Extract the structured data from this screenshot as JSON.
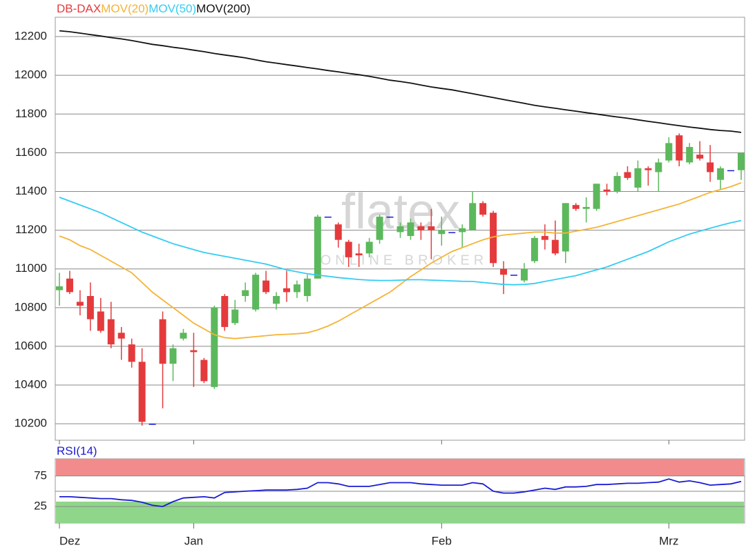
{
  "chart_data": [
    {
      "type": "candlestick",
      "watermark": "flatex",
      "watermark_sub": "ONLINE BROKER",
      "categories": [
        "Dez",
        null,
        null,
        null,
        null,
        null,
        null,
        null,
        null,
        null,
        null,
        null,
        null,
        "Jan",
        null,
        null,
        null,
        null,
        null,
        null,
        null,
        null,
        null,
        null,
        null,
        null,
        null,
        null,
        null,
        null,
        null,
        null,
        null,
        null,
        null,
        null,
        null,
        "Feb",
        null,
        null,
        null,
        null,
        null,
        null,
        null,
        null,
        null,
        null,
        null,
        null,
        null,
        null,
        null,
        null,
        null,
        null,
        null,
        null,
        null,
        "Mrz",
        null,
        null,
        null,
        null,
        null,
        null,
        null
      ],
      "ylim": [
        10115,
        12300
      ],
      "yticks": [
        10200,
        10400,
        10600,
        10800,
        11000,
        11200,
        11400,
        11600,
        11800,
        12000,
        12200
      ],
      "grid": true,
      "candles": {
        "name": "DB-DAX",
        "up_color": "#5cb85c",
        "down_color": "#e53a3c",
        "doji_color": "#1a1ad6",
        "open": [
          10890,
          10950,
          10830,
          10860,
          10780,
          10740,
          10670,
          10610,
          10520,
          10200,
          10740,
          10510,
          10640,
          10580,
          10530,
          10390,
          10860,
          10720,
          10860,
          10790,
          10940,
          10820,
          10900,
          10880,
          10860,
          10950,
          11270,
          11230,
          11140,
          11080,
          11080,
          11150,
          11270,
          11190,
          11170,
          11220,
          11220,
          11180,
          11190,
          11190,
          11200,
          11340,
          11290,
          11000,
          10970,
          10940,
          11040,
          11170,
          11150,
          11090,
          11330,
          11310,
          11310,
          11410,
          11400,
          11500,
          11420,
          11520,
          11500,
          11560,
          11690,
          11550,
          11590,
          11550,
          11460,
          11510,
          11510
        ],
        "high": [
          10980,
          10990,
          10890,
          10930,
          10850,
          10830,
          10700,
          10640,
          10590,
          10200,
          10780,
          10610,
          10690,
          10670,
          10540,
          10810,
          10870,
          10840,
          10930,
          10980,
          10990,
          10880,
          10990,
          10940,
          10970,
          11280,
          11270,
          11240,
          11150,
          11130,
          11160,
          11280,
          11270,
          11240,
          11260,
          11240,
          11310,
          11270,
          11190,
          11230,
          11400,
          11350,
          11300,
          11040,
          10970,
          11030,
          11170,
          11230,
          11250,
          11340,
          11340,
          11370,
          11440,
          11440,
          11500,
          11530,
          11560,
          11530,
          11570,
          11680,
          11700,
          11650,
          11660,
          11640,
          11530,
          11510,
          11600
        ],
        "low": [
          10810,
          10870,
          10760,
          10680,
          10670,
          10590,
          10530,
          10490,
          10190,
          10195,
          10280,
          10420,
          10630,
          10390,
          10410,
          10380,
          10680,
          10710,
          10830,
          10780,
          10870,
          10790,
          10830,
          10850,
          10830,
          10950,
          11270,
          11110,
          11010,
          11010,
          11060,
          11130,
          11270,
          11160,
          11150,
          11150,
          11050,
          11120,
          11190,
          11110,
          11200,
          11270,
          11010,
          10870,
          10970,
          10930,
          11030,
          11100,
          11070,
          11030,
          11300,
          11240,
          11300,
          11380,
          11390,
          11460,
          11400,
          11430,
          11400,
          11550,
          11530,
          11540,
          11560,
          11450,
          11410,
          11510,
          11460
        ],
        "close": [
          10910,
          10880,
          10810,
          10740,
          10680,
          10610,
          10640,
          10520,
          10210,
          10200,
          10510,
          10590,
          10670,
          10570,
          10420,
          10800,
          10700,
          10790,
          10890,
          10970,
          10880,
          10860,
          10880,
          10920,
          10950,
          11270,
          11270,
          11150,
          11060,
          11070,
          11140,
          11270,
          11270,
          11220,
          11240,
          11200,
          11200,
          11200,
          11190,
          11210,
          11340,
          11280,
          11030,
          10970,
          10970,
          11000,
          11160,
          11150,
          11080,
          11340,
          11310,
          11320,
          11440,
          11400,
          11480,
          11470,
          11520,
          11510,
          11550,
          11650,
          11560,
          11630,
          11570,
          11500,
          11520,
          11510,
          11600
        ]
      },
      "series": [
        {
          "name": "MOV(20)",
          "color": "#f5b335",
          "values": [
            11170,
            11150,
            11120,
            11100,
            11070,
            11040,
            11010,
            10980,
            10930,
            10880,
            10840,
            10800,
            10760,
            10720,
            10690,
            10660,
            10645,
            10640,
            10645,
            10650,
            10655,
            10660,
            10662,
            10665,
            10670,
            10685,
            10705,
            10730,
            10760,
            10790,
            10820,
            10850,
            10880,
            10920,
            10960,
            10995,
            11030,
            11060,
            11090,
            11110,
            11130,
            11150,
            11165,
            11175,
            11180,
            11185,
            11190,
            11190,
            11185,
            11185,
            11195,
            11205,
            11215,
            11230,
            11245,
            11260,
            11275,
            11290,
            11305,
            11320,
            11335,
            11355,
            11375,
            11395,
            11410,
            11425,
            11445
          ]
        },
        {
          "name": "MOV(50)",
          "color": "#33ccf2",
          "values": [
            11370,
            11350,
            11330,
            11310,
            11290,
            11265,
            11240,
            11215,
            11190,
            11170,
            11150,
            11130,
            11115,
            11100,
            11085,
            11075,
            11065,
            11055,
            11045,
            11035,
            11025,
            11010,
            10995,
            10985,
            10975,
            10968,
            10962,
            10955,
            10950,
            10945,
            10942,
            10940,
            10940,
            10942,
            10944,
            10944,
            10942,
            10940,
            10938,
            10936,
            10935,
            10930,
            10925,
            10920,
            10918,
            10920,
            10925,
            10935,
            10945,
            10955,
            10965,
            10980,
            10995,
            11010,
            11030,
            11050,
            11070,
            11090,
            11115,
            11140,
            11160,
            11180,
            11195,
            11210,
            11225,
            11238,
            11250
          ]
        },
        {
          "name": "MOV(200)",
          "color": "#111111",
          "values": [
            12230,
            12225,
            12218,
            12210,
            12203,
            12195,
            12188,
            12180,
            12170,
            12160,
            12153,
            12145,
            12138,
            12130,
            12122,
            12113,
            12105,
            12098,
            12090,
            12080,
            12070,
            12063,
            12055,
            12048,
            12040,
            12033,
            12025,
            12018,
            12010,
            12003,
            11995,
            11985,
            11975,
            11968,
            11960,
            11950,
            11940,
            11932,
            11925,
            11915,
            11905,
            11895,
            11885,
            11875,
            11865,
            11855,
            11845,
            11837,
            11830,
            11822,
            11815,
            11807,
            11800,
            11792,
            11785,
            11778,
            11770,
            11762,
            11755,
            11747,
            11740,
            11733,
            11727,
            11720,
            11715,
            11712,
            11705
          ]
        }
      ]
    },
    {
      "type": "line",
      "ylim": [
        -2,
        103
      ],
      "yticks": [
        25,
        75
      ],
      "midline": 50,
      "upper_zone": [
        75,
        103
      ],
      "upper_color": "#f28b8b",
      "lower_zone": [
        -2,
        33
      ],
      "lower_color": "#8fd68a",
      "series": [
        {
          "name": "RSI(14)",
          "color": "#1a1ad6",
          "values": [
            41,
            41,
            40,
            39,
            38,
            38,
            36,
            35,
            32,
            27,
            25,
            33,
            39,
            40,
            41,
            39,
            48,
            49,
            50,
            51,
            52,
            52,
            52,
            53,
            55,
            64,
            64,
            62,
            58,
            58,
            58,
            61,
            64,
            64,
            64,
            62,
            61,
            60,
            60,
            60,
            64,
            62,
            50,
            47,
            47,
            49,
            52,
            55,
            53,
            57,
            57,
            58,
            61,
            61,
            62,
            63,
            63,
            64,
            65,
            70,
            65,
            67,
            64,
            60,
            61,
            62,
            66
          ]
        }
      ]
    }
  ]
}
